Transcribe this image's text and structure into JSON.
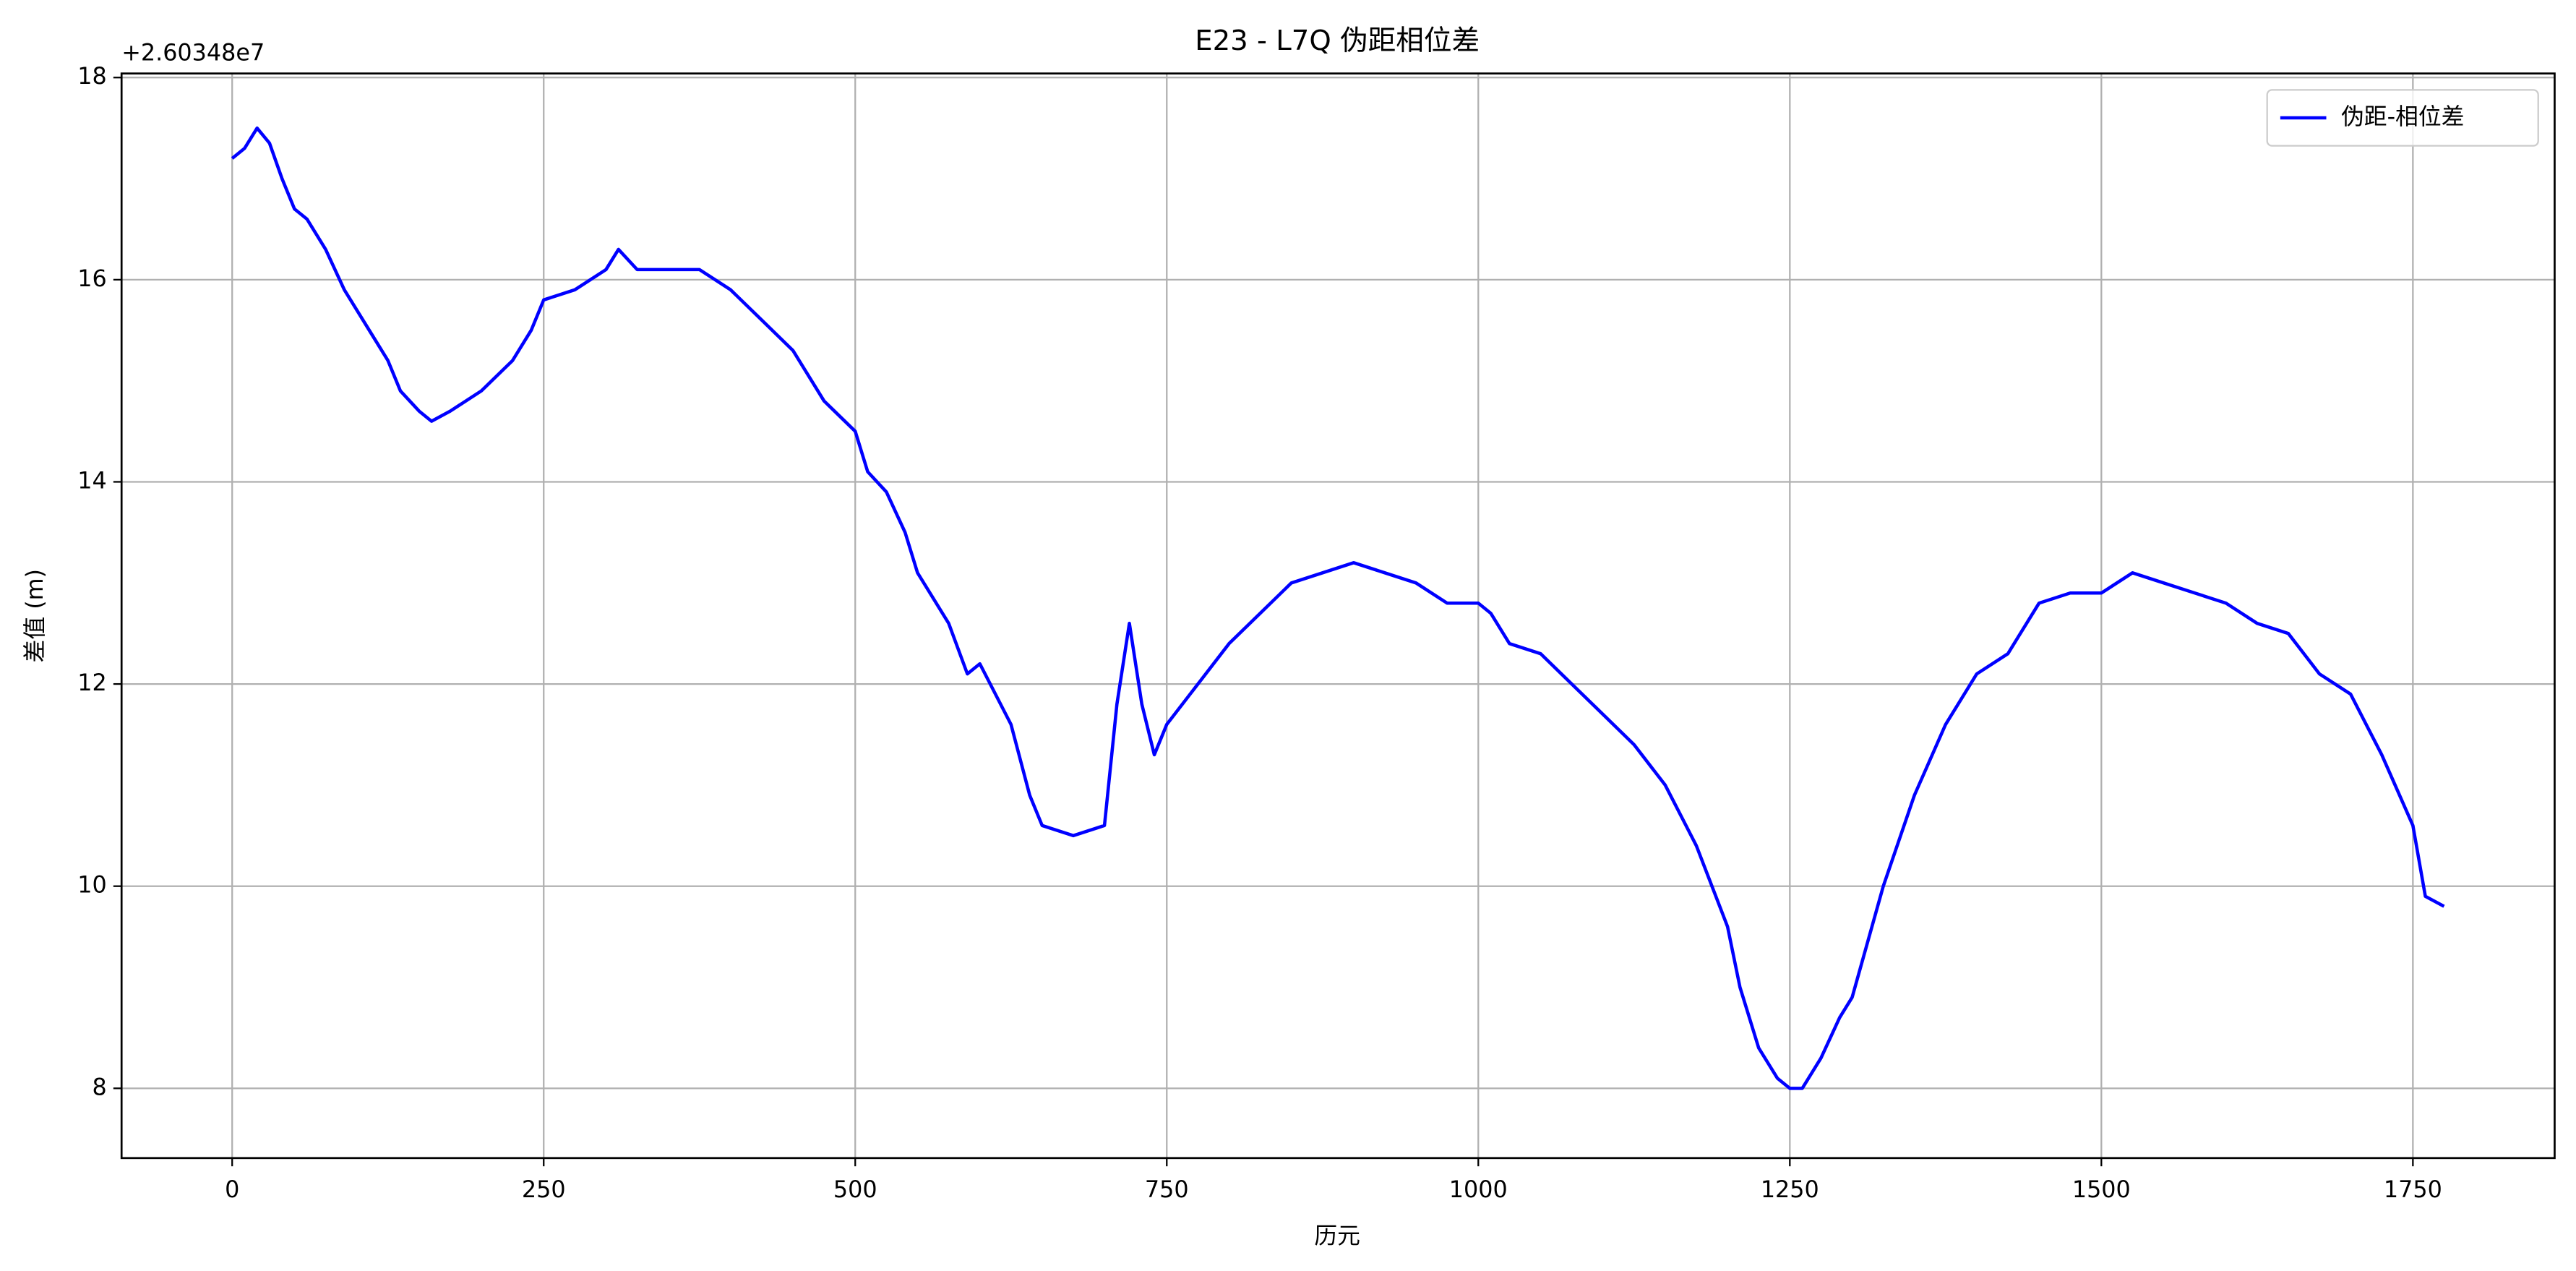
{
  "chart_data": {
    "type": "line",
    "title": "E23 - L7Q 伪距相位差",
    "x_label": "历元",
    "y_label": "差值 (m)",
    "y_offset_label": "+2.60348e7",
    "legend_position": "upper right",
    "grid": true,
    "xlim": [
      -88.75,
      1863.75
    ],
    "ylim": [
      7.31,
      18.04
    ],
    "xticks": [
      0,
      250,
      500,
      750,
      1000,
      1250,
      1500,
      1750
    ],
    "yticks": [
      8,
      10,
      12,
      14,
      16,
      18
    ],
    "x": [
      0,
      10,
      20,
      30,
      40,
      50,
      60,
      75,
      90,
      100,
      110,
      125,
      135,
      150,
      160,
      175,
      200,
      225,
      240,
      250,
      275,
      300,
      310,
      325,
      350,
      375,
      400,
      425,
      450,
      475,
      500,
      510,
      525,
      540,
      550,
      575,
      590,
      600,
      625,
      640,
      650,
      675,
      700,
      710,
      720,
      730,
      740,
      750,
      775,
      800,
      825,
      850,
      875,
      900,
      925,
      950,
      975,
      1000,
      1010,
      1025,
      1050,
      1075,
      1100,
      1125,
      1150,
      1175,
      1200,
      1210,
      1225,
      1240,
      1250,
      1260,
      1275,
      1290,
      1300,
      1325,
      1350,
      1375,
      1400,
      1425,
      1450,
      1475,
      1500,
      1525,
      1550,
      1575,
      1600,
      1625,
      1650,
      1675,
      1700,
      1725,
      1750,
      1760,
      1775
    ],
    "series": [
      {
        "name": "伪距-相位差",
        "color": "#0000ff",
        "values": [
          17.2,
          17.3,
          17.5,
          17.35,
          17.0,
          16.7,
          16.6,
          16.3,
          15.9,
          15.7,
          15.5,
          15.2,
          14.9,
          14.7,
          14.6,
          14.7,
          14.9,
          15.2,
          15.5,
          15.8,
          15.9,
          16.1,
          16.3,
          16.1,
          16.1,
          16.1,
          15.9,
          15.6,
          15.3,
          14.8,
          14.5,
          14.1,
          13.9,
          13.5,
          13.1,
          12.6,
          12.1,
          12.2,
          11.6,
          10.9,
          10.6,
          10.5,
          10.6,
          11.8,
          12.6,
          11.8,
          11.3,
          11.6,
          12.0,
          12.4,
          12.7,
          13.0,
          13.1,
          13.2,
          13.1,
          13.0,
          12.8,
          12.8,
          12.7,
          12.4,
          12.3,
          12.0,
          11.7,
          11.4,
          11.0,
          10.4,
          9.6,
          9.0,
          8.4,
          8.1,
          8.0,
          8.0,
          8.3,
          8.7,
          8.9,
          10.0,
          10.9,
          11.6,
          12.1,
          12.3,
          12.8,
          12.9,
          12.9,
          13.1,
          13.0,
          12.9,
          12.8,
          12.6,
          12.5,
          12.1,
          11.9,
          11.3,
          10.6,
          9.9,
          9.8
        ]
      }
    ]
  }
}
